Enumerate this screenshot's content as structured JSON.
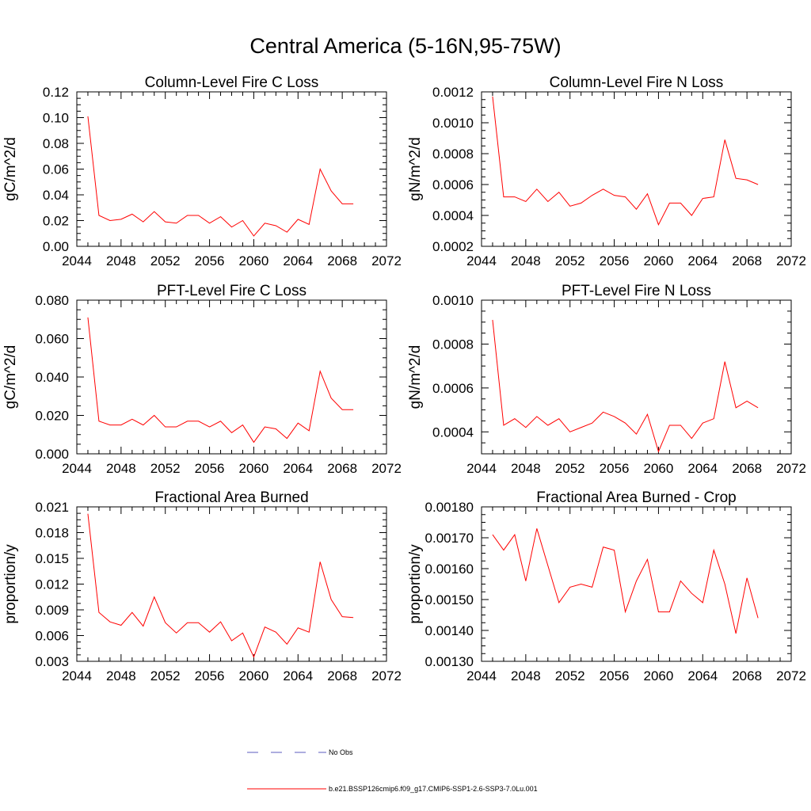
{
  "figure": {
    "title": "Central America (5-16N,95-75W)"
  },
  "legend": {
    "entries": [
      {
        "label": "No Obs",
        "style": "dashed",
        "color": "#5b5bbf"
      },
      {
        "label": "b.e21.BSSP126cmip6.f09_g17.CMIP6-SSP1-2.6-SSP3-7.0Lu.001",
        "style": "solid",
        "color": "#ff0000"
      }
    ]
  },
  "chart_data": [
    {
      "type": "line",
      "title": "Column-Level Fire C Loss",
      "ylabel": "gC/m^2/d",
      "xlim": [
        2044,
        2072
      ],
      "ylim": [
        0.0,
        0.12
      ],
      "xticks": [
        "2044",
        "2048",
        "2052",
        "2056",
        "2060",
        "2064",
        "2068",
        "2072"
      ],
      "yticks": [
        "0.00",
        "0.02",
        "0.04",
        "0.06",
        "0.08",
        "0.10",
        "0.12"
      ],
      "x": [
        2045,
        2046,
        2047,
        2048,
        2049,
        2050,
        2051,
        2052,
        2053,
        2054,
        2055,
        2056,
        2057,
        2058,
        2059,
        2060,
        2061,
        2062,
        2063,
        2064,
        2065,
        2066,
        2067,
        2068,
        2069
      ],
      "series": [
        {
          "color": "#ff0000",
          "values": [
            0.101,
            0.024,
            0.02,
            0.021,
            0.025,
            0.019,
            0.027,
            0.019,
            0.018,
            0.024,
            0.024,
            0.018,
            0.023,
            0.015,
            0.02,
            0.008,
            0.018,
            0.016,
            0.011,
            0.021,
            0.017,
            0.06,
            0.043,
            0.033,
            0.033
          ]
        }
      ]
    },
    {
      "type": "line",
      "title": "Column-Level Fire N Loss",
      "ylabel": "gN/m^2/d",
      "xlim": [
        2044,
        2072
      ],
      "ylim": [
        0.0002,
        0.0012
      ],
      "xticks": [
        "2044",
        "2048",
        "2052",
        "2056",
        "2060",
        "2064",
        "2068",
        "2072"
      ],
      "yticks": [
        "0.0002",
        "0.0004",
        "0.0006",
        "0.0008",
        "0.0010",
        "0.0012"
      ],
      "x": [
        2045,
        2046,
        2047,
        2048,
        2049,
        2050,
        2051,
        2052,
        2053,
        2054,
        2055,
        2056,
        2057,
        2058,
        2059,
        2060,
        2061,
        2062,
        2063,
        2064,
        2065,
        2066,
        2067,
        2068,
        2069
      ],
      "series": [
        {
          "color": "#ff0000",
          "values": [
            0.00117,
            0.00052,
            0.00052,
            0.00049,
            0.00057,
            0.00049,
            0.00055,
            0.00046,
            0.00048,
            0.00053,
            0.00057,
            0.00053,
            0.00052,
            0.00044,
            0.00054,
            0.00034,
            0.00048,
            0.00048,
            0.0004,
            0.00051,
            0.00052,
            0.00089,
            0.00064,
            0.00063,
            0.0006
          ]
        }
      ]
    },
    {
      "type": "line",
      "title": "PFT-Level Fire C Loss",
      "ylabel": "gC/m^2/d",
      "xlim": [
        2044,
        2072
      ],
      "ylim": [
        0.0,
        0.08
      ],
      "xticks": [
        "2044",
        "2048",
        "2052",
        "2056",
        "2060",
        "2064",
        "2068",
        "2072"
      ],
      "yticks": [
        "0.000",
        "0.020",
        "0.040",
        "0.060",
        "0.080"
      ],
      "x": [
        2045,
        2046,
        2047,
        2048,
        2049,
        2050,
        2051,
        2052,
        2053,
        2054,
        2055,
        2056,
        2057,
        2058,
        2059,
        2060,
        2061,
        2062,
        2063,
        2064,
        2065,
        2066,
        2067,
        2068,
        2069
      ],
      "series": [
        {
          "color": "#ff0000",
          "values": [
            0.071,
            0.017,
            0.015,
            0.015,
            0.018,
            0.015,
            0.02,
            0.014,
            0.014,
            0.017,
            0.017,
            0.014,
            0.017,
            0.011,
            0.015,
            0.006,
            0.014,
            0.013,
            0.008,
            0.016,
            0.012,
            0.043,
            0.029,
            0.023,
            0.023
          ]
        }
      ]
    },
    {
      "type": "line",
      "title": "PFT-Level Fire N Loss",
      "ylabel": "gN/m^2/d",
      "xlim": [
        2044,
        2072
      ],
      "ylim": [
        0.0003,
        0.001
      ],
      "xticks": [
        "2044",
        "2048",
        "2052",
        "2056",
        "2060",
        "2064",
        "2068",
        "2072"
      ],
      "yticks": [
        "0.0004",
        "0.0006",
        "0.0008",
        "0.0010"
      ],
      "x": [
        2045,
        2046,
        2047,
        2048,
        2049,
        2050,
        2051,
        2052,
        2053,
        2054,
        2055,
        2056,
        2057,
        2058,
        2059,
        2060,
        2061,
        2062,
        2063,
        2064,
        2065,
        2066,
        2067,
        2068,
        2069
      ],
      "series": [
        {
          "color": "#ff0000",
          "values": [
            0.00091,
            0.00043,
            0.00046,
            0.00042,
            0.00047,
            0.00043,
            0.00046,
            0.0004,
            0.00042,
            0.00044,
            0.00049,
            0.00047,
            0.00044,
            0.00039,
            0.00048,
            0.00031,
            0.00043,
            0.00043,
            0.00037,
            0.00044,
            0.00046,
            0.00072,
            0.00051,
            0.00054,
            0.00051
          ]
        }
      ]
    },
    {
      "type": "line",
      "title": "Fractional Area Burned",
      "ylabel": "proportion/y",
      "xlim": [
        2044,
        2072
      ],
      "ylim": [
        0.003,
        0.021
      ],
      "xticks": [
        "2044",
        "2048",
        "2052",
        "2056",
        "2060",
        "2064",
        "2068",
        "2072"
      ],
      "yticks": [
        "0.003",
        "0.006",
        "0.009",
        "0.012",
        "0.015",
        "0.018",
        "0.021"
      ],
      "x": [
        2045,
        2046,
        2047,
        2048,
        2049,
        2050,
        2051,
        2052,
        2053,
        2054,
        2055,
        2056,
        2057,
        2058,
        2059,
        2060,
        2061,
        2062,
        2063,
        2064,
        2065,
        2066,
        2067,
        2068,
        2069
      ],
      "series": [
        {
          "color": "#ff0000",
          "values": [
            0.0202,
            0.0087,
            0.0076,
            0.0072,
            0.0087,
            0.0071,
            0.0105,
            0.0075,
            0.0063,
            0.0075,
            0.0075,
            0.0064,
            0.0076,
            0.0054,
            0.0063,
            0.0035,
            0.007,
            0.0064,
            0.005,
            0.0069,
            0.0064,
            0.0146,
            0.0102,
            0.0082,
            0.0081
          ]
        }
      ]
    },
    {
      "type": "line",
      "title": "Fractional Area Burned - Crop",
      "ylabel": "proportion/y",
      "xlim": [
        2044,
        2072
      ],
      "ylim": [
        0.0013,
        0.0018
      ],
      "xticks": [
        "2044",
        "2048",
        "2052",
        "2056",
        "2060",
        "2064",
        "2068",
        "2072"
      ],
      "yticks": [
        "0.00130",
        "0.00140",
        "0.00150",
        "0.00160",
        "0.00170",
        "0.00180"
      ],
      "x": [
        2045,
        2046,
        2047,
        2048,
        2049,
        2050,
        2051,
        2052,
        2053,
        2054,
        2055,
        2056,
        2057,
        2058,
        2059,
        2060,
        2061,
        2062,
        2063,
        2064,
        2065,
        2066,
        2067,
        2068,
        2069
      ],
      "series": [
        {
          "color": "#ff0000",
          "values": [
            0.00171,
            0.00166,
            0.00171,
            0.00156,
            0.00173,
            0.00161,
            0.00149,
            0.00154,
            0.00155,
            0.00154,
            0.00167,
            0.00166,
            0.00146,
            0.00156,
            0.00163,
            0.00146,
            0.00146,
            0.00156,
            0.00152,
            0.00149,
            0.00166,
            0.00155,
            0.00139,
            0.00157,
            0.00144
          ]
        }
      ]
    }
  ]
}
